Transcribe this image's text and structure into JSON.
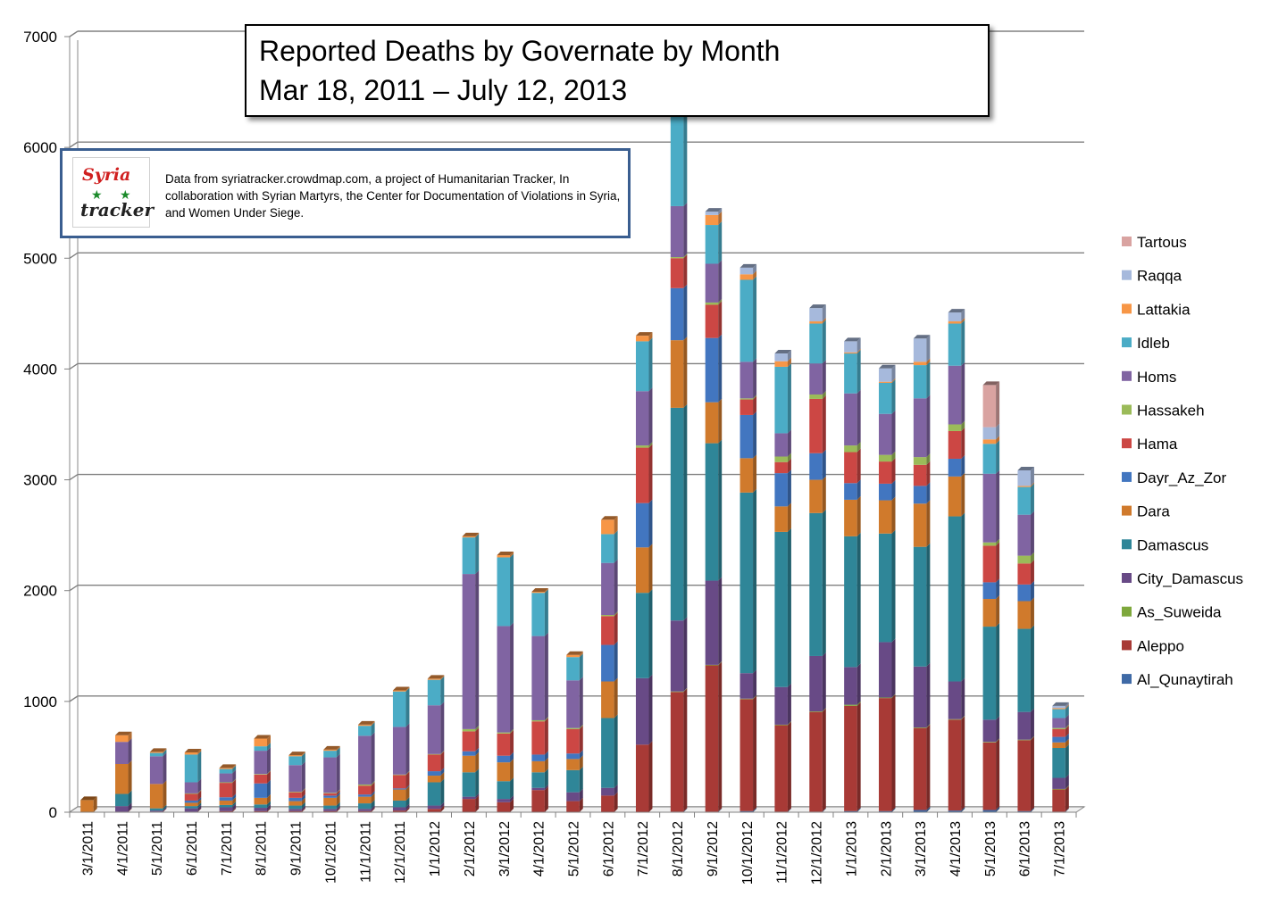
{
  "title": {
    "line1": "Reported Deaths by Governate by Month",
    "line2": "Mar 18, 2011 – July 12, 2013"
  },
  "source": {
    "logo_top": "Syria",
    "logo_bottom": "tracker",
    "text": "Data from syriatracker.crowdmap.com, a project of Humanitarian Tracker, In collaboration with Syrian Martyrs, the Center for Documentation of Violations in Syria, and Women Under Siege."
  },
  "colors": {
    "Al_Qunaytirah": "#3f6aa6",
    "Aleppo": "#a83a36",
    "As_Suweida": "#7ea83c",
    "City_Damascus": "#684a86",
    "Damascus": "#2f8698",
    "Dara": "#d07a2c",
    "Dayr_Az_Zor": "#4276c0",
    "Hama": "#cc4744",
    "Hassakeh": "#9bbb59",
    "Homs": "#8064a2",
    "Idleb": "#4bacc6",
    "Lattakia": "#f79646",
    "Raqqa": "#a6b9dc",
    "Tartous": "#d9a3a1"
  },
  "chart_data": {
    "type": "bar",
    "stacked": true,
    "title": "Reported Deaths by Governate by Month",
    "xlabel": "",
    "ylabel": "",
    "ylim": [
      0,
      7000
    ],
    "yticks": [
      0,
      1000,
      2000,
      3000,
      4000,
      5000,
      6000,
      7000
    ],
    "grid": true,
    "legend_position": "right",
    "categories": [
      "3/1/2011",
      "4/1/2011",
      "5/1/2011",
      "6/1/2011",
      "7/1/2011",
      "8/1/2011",
      "9/1/2011",
      "10/1/2011",
      "11/1/2011",
      "12/1/2011",
      "1/1/2012",
      "2/1/2012",
      "3/1/2012",
      "4/1/2012",
      "5/1/2012",
      "6/1/2012",
      "7/1/2012",
      "8/1/2012",
      "9/1/2012",
      "10/1/2012",
      "11/1/2012",
      "12/1/2012",
      "1/1/2013",
      "2/1/2013",
      "3/1/2013",
      "4/1/2013",
      "5/1/2013",
      "6/1/2013",
      "7/1/2013"
    ],
    "series": [
      {
        "name": "Al_Qunaytirah",
        "values": [
          0,
          0,
          0,
          0,
          0,
          0,
          0,
          0,
          0,
          0,
          0,
          0,
          0,
          0,
          0,
          0,
          0,
          5,
          5,
          10,
          5,
          5,
          10,
          10,
          20,
          15,
          20,
          10,
          5
        ]
      },
      {
        "name": "Aleppo",
        "values": [
          0,
          5,
          5,
          5,
          10,
          10,
          10,
          10,
          10,
          15,
          30,
          120,
          90,
          200,
          100,
          150,
          610,
          1080,
          1320,
          1010,
          780,
          900,
          950,
          1020,
          740,
          820,
          610,
          640,
          200
        ]
      },
      {
        "name": "As_Suweida",
        "values": [
          0,
          0,
          0,
          0,
          0,
          0,
          0,
          0,
          0,
          0,
          0,
          0,
          0,
          0,
          0,
          0,
          0,
          5,
          5,
          5,
          5,
          5,
          10,
          5,
          5,
          5,
          5,
          5,
          5
        ]
      },
      {
        "name": "City_Damascus",
        "values": [
          0,
          50,
          10,
          30,
          35,
          30,
          20,
          20,
          20,
          30,
          30,
          20,
          30,
          20,
          80,
          70,
          600,
          640,
          760,
          230,
          340,
          500,
          340,
          500,
          550,
          340,
          200,
          250,
          100
        ]
      },
      {
        "name": "Damascus",
        "values": [
          0,
          110,
          20,
          20,
          20,
          30,
          30,
          30,
          50,
          60,
          210,
          220,
          160,
          140,
          200,
          630,
          770,
          1920,
          1240,
          1630,
          1400,
          1290,
          1180,
          980,
          1080,
          1490,
          840,
          750,
          270
        ]
      },
      {
        "name": "Dara",
        "values": [
          110,
          270,
          220,
          30,
          40,
          60,
          40,
          70,
          60,
          100,
          60,
          150,
          170,
          100,
          100,
          330,
          410,
          610,
          370,
          310,
          230,
          300,
          330,
          300,
          390,
          360,
          250,
          250,
          50
        ]
      },
      {
        "name": "Dayr_Az_Zor",
        "values": [
          0,
          0,
          0,
          20,
          30,
          130,
          30,
          20,
          20,
          10,
          40,
          40,
          60,
          60,
          50,
          330,
          400,
          470,
          580,
          390,
          300,
          240,
          150,
          150,
          160,
          160,
          150,
          150,
          50
        ]
      },
      {
        "name": "Hama",
        "values": [
          0,
          0,
          0,
          60,
          130,
          80,
          50,
          20,
          80,
          120,
          150,
          180,
          200,
          300,
          220,
          260,
          500,
          270,
          300,
          140,
          100,
          490,
          280,
          200,
          190,
          250,
          330,
          190,
          70
        ]
      },
      {
        "name": "Hassakeh",
        "values": [
          0,
          0,
          0,
          5,
          5,
          5,
          5,
          5,
          10,
          5,
          5,
          20,
          10,
          10,
          10,
          10,
          20,
          10,
          20,
          10,
          50,
          40,
          60,
          60,
          70,
          60,
          30,
          70,
          10
        ]
      },
      {
        "name": "Homs",
        "values": [
          0,
          200,
          250,
          100,
          80,
          210,
          240,
          320,
          440,
          430,
          440,
          1400,
          960,
          760,
          430,
          470,
          490,
          460,
          350,
          330,
          210,
          280,
          470,
          370,
          530,
          530,
          620,
          370,
          90
        ]
      },
      {
        "name": "Idleb",
        "values": [
          0,
          0,
          30,
          250,
          40,
          40,
          80,
          60,
          90,
          320,
          230,
          330,
          620,
          390,
          210,
          260,
          450,
          1160,
          350,
          740,
          600,
          360,
          360,
          280,
          300,
          380,
          270,
          250,
          80
        ]
      },
      {
        "name": "Lattakia",
        "values": [
          0,
          60,
          10,
          20,
          10,
          70,
          10,
          10,
          10,
          10,
          10,
          10,
          20,
          10,
          20,
          130,
          50,
          130,
          90,
          50,
          50,
          20,
          10,
          10,
          30,
          20,
          40,
          10,
          10
        ]
      },
      {
        "name": "Raqqa",
        "values": [
          0,
          0,
          0,
          0,
          0,
          0,
          0,
          0,
          0,
          0,
          0,
          0,
          0,
          0,
          0,
          0,
          0,
          90,
          30,
          60,
          70,
          120,
          100,
          120,
          210,
          80,
          110,
          140,
          20
        ]
      },
      {
        "name": "Tartous",
        "values": [
          0,
          0,
          0,
          0,
          0,
          0,
          0,
          0,
          0,
          0,
          0,
          0,
          0,
          0,
          0,
          0,
          0,
          0,
          0,
          0,
          0,
          0,
          0,
          0,
          0,
          0,
          380,
          0,
          0
        ]
      }
    ],
    "legend": [
      "Tartous",
      "Raqqa",
      "Lattakia",
      "Idleb",
      "Homs",
      "Hassakeh",
      "Hama",
      "Dayr_Az_Zor",
      "Dara",
      "Damascus",
      "City_Damascus",
      "As_Suweida",
      "Aleppo",
      "Al_Qunaytirah"
    ]
  }
}
